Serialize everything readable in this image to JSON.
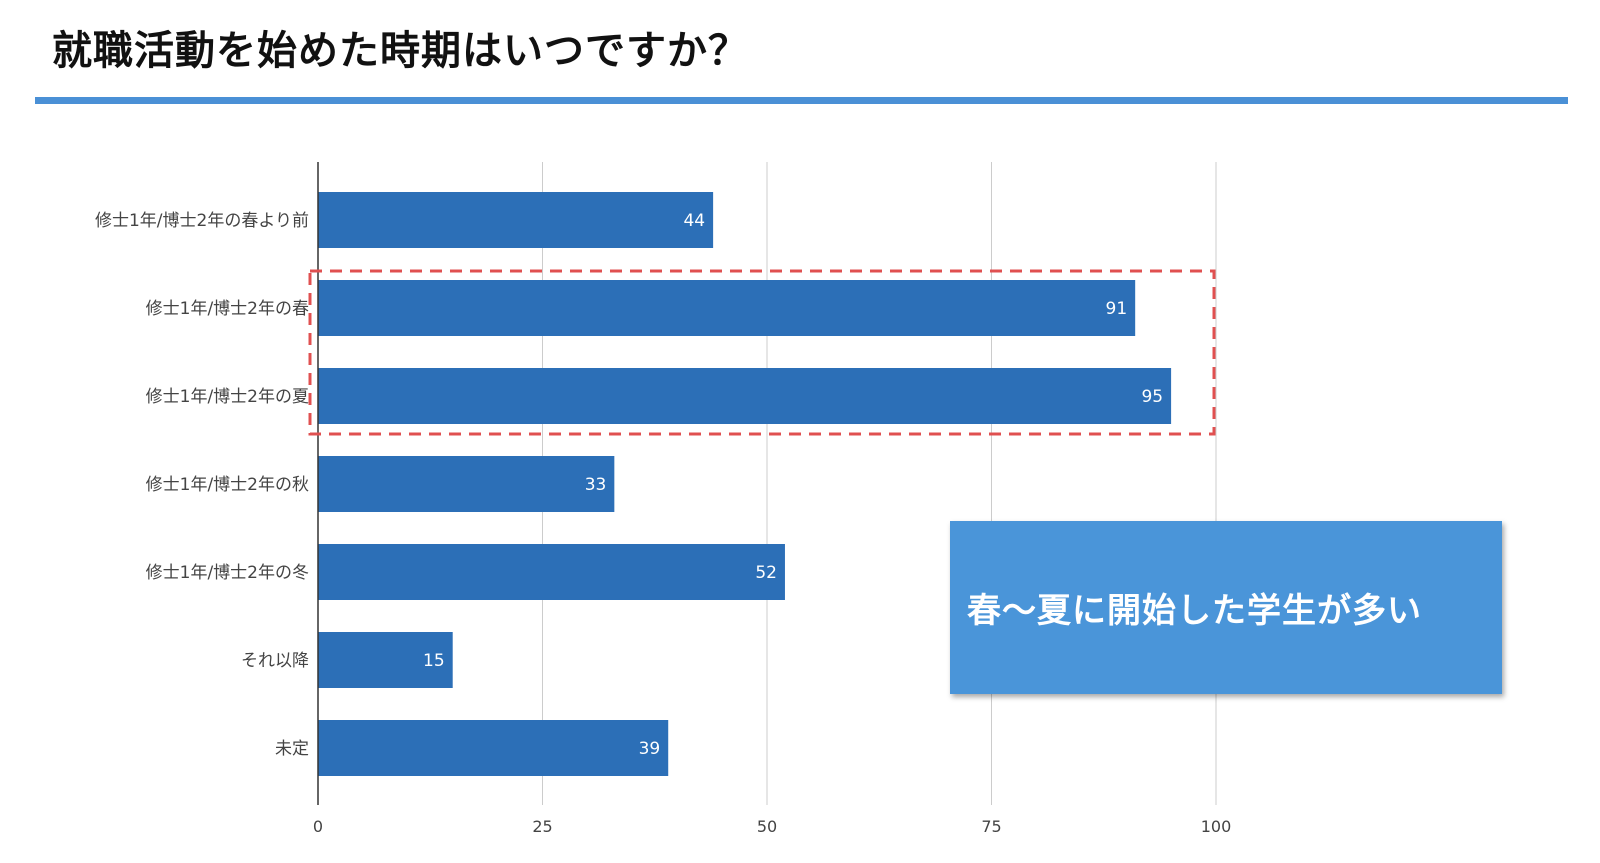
{
  "header": {
    "title": "就職活動を始めた時期はいつですか？",
    "rule_color": "#4a90d6"
  },
  "callout": {
    "text": "春〜夏に開始した学生が多い",
    "background": "#4a95d9"
  },
  "highlight": {
    "categories": [
      "修士1年/博士2年の春",
      "修士1年/博士2年の夏"
    ],
    "color": "#e05050",
    "style": "dashed"
  },
  "chart_data": {
    "type": "bar",
    "orientation": "horizontal",
    "categories": [
      "修士1年/博士2年の春より前",
      "修士1年/博士2年の春",
      "修士1年/博士2年の夏",
      "修士1年/博士2年の秋",
      "修士1年/博士2年の冬",
      "それ以降",
      "未定"
    ],
    "values": [
      44,
      91,
      95,
      33,
      52,
      15,
      39
    ],
    "xlim": [
      0,
      100
    ],
    "xticks": [
      0,
      25,
      50,
      75,
      100
    ],
    "grid": true,
    "data_labels": true,
    "bar_color": "#2c6fb7",
    "title": "",
    "xlabel": "",
    "ylabel": ""
  }
}
